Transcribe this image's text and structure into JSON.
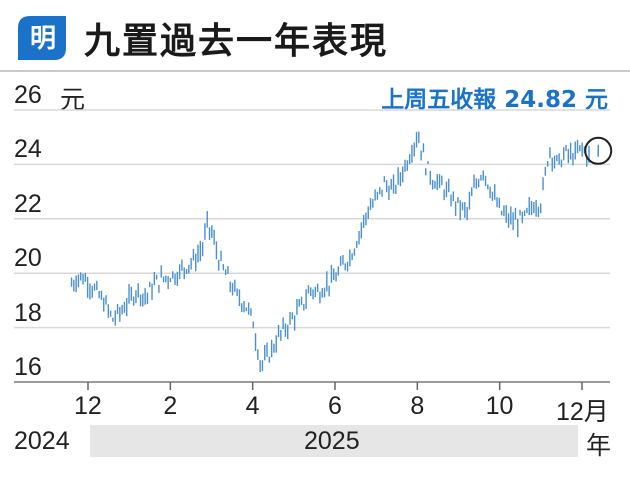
{
  "header": {
    "logo_char": "明",
    "title": "九置過去一年表現"
  },
  "chart_data": {
    "type": "bar",
    "subtype": "ohlc-like daily range bars",
    "unit_label": "元",
    "note": "上周五收報 24.82 元",
    "y_ticks": [
      26,
      24,
      22,
      20,
      18,
      16
    ],
    "ylim": [
      15.5,
      26.5
    ],
    "x_ticks": [
      "12",
      "2",
      "4",
      "6",
      "8",
      "10",
      "12月"
    ],
    "x_tick_months": [
      12,
      14,
      16,
      18,
      20,
      22,
      24
    ],
    "year_labels": [
      "2024",
      "2025"
    ],
    "year_suffix": "年",
    "grid": "horizontal",
    "colors": {
      "series": "#4a90d0",
      "note": "#1a73c8",
      "grid": "#d9d9d9"
    },
    "x_month_range": [
      11.6,
      24.2
    ],
    "series": [
      {
        "values": [
          [
            11.6,
            19.6
          ],
          [
            11.8,
            19.9
          ],
          [
            12.0,
            19.7
          ],
          [
            12.2,
            19.3
          ],
          [
            12.4,
            18.9
          ],
          [
            12.6,
            18.3
          ],
          [
            12.8,
            18.6
          ],
          [
            13.0,
            19.0
          ],
          [
            13.2,
            19.4
          ],
          [
            13.4,
            19.1
          ],
          [
            13.6,
            19.6
          ],
          [
            13.8,
            19.8
          ],
          [
            14.0,
            19.9
          ],
          [
            14.2,
            20.0
          ],
          [
            14.4,
            20.3
          ],
          [
            14.6,
            20.5
          ],
          [
            14.8,
            21.0
          ],
          [
            14.9,
            21.8
          ],
          [
            15.0,
            21.5
          ],
          [
            15.2,
            20.4
          ],
          [
            15.4,
            19.8
          ],
          [
            15.6,
            19.2
          ],
          [
            15.8,
            18.9
          ],
          [
            16.0,
            18.3
          ],
          [
            16.1,
            17.4
          ],
          [
            16.2,
            16.6
          ],
          [
            16.4,
            17.0
          ],
          [
            16.6,
            17.6
          ],
          [
            16.8,
            18.0
          ],
          [
            17.0,
            18.4
          ],
          [
            17.2,
            18.8
          ],
          [
            17.4,
            19.4
          ],
          [
            17.6,
            19.3
          ],
          [
            17.8,
            19.6
          ],
          [
            18.0,
            19.8
          ],
          [
            18.2,
            20.3
          ],
          [
            18.4,
            20.7
          ],
          [
            18.6,
            21.5
          ],
          [
            18.8,
            22.3
          ],
          [
            19.0,
            22.7
          ],
          [
            19.2,
            23.3
          ],
          [
            19.4,
            23.0
          ],
          [
            19.6,
            23.6
          ],
          [
            19.8,
            24.3
          ],
          [
            20.0,
            25.1
          ],
          [
            20.1,
            24.6
          ],
          [
            20.2,
            24.0
          ],
          [
            20.4,
            23.4
          ],
          [
            20.6,
            23.2
          ],
          [
            20.8,
            22.8
          ],
          [
            21.0,
            22.5
          ],
          [
            21.2,
            22.2
          ],
          [
            21.4,
            23.2
          ],
          [
            21.6,
            23.8
          ],
          [
            21.8,
            23.0
          ],
          [
            22.0,
            22.3
          ],
          [
            22.2,
            22.0
          ],
          [
            22.4,
            21.9
          ],
          [
            22.6,
            22.0
          ],
          [
            22.8,
            22.5
          ],
          [
            23.0,
            22.6
          ],
          [
            23.1,
            23.5
          ],
          [
            23.2,
            24.6
          ],
          [
            23.4,
            24.0
          ],
          [
            23.6,
            24.4
          ],
          [
            23.8,
            24.3
          ],
          [
            24.0,
            24.6
          ],
          [
            24.2,
            24.2
          ]
        ]
      }
    ]
  }
}
